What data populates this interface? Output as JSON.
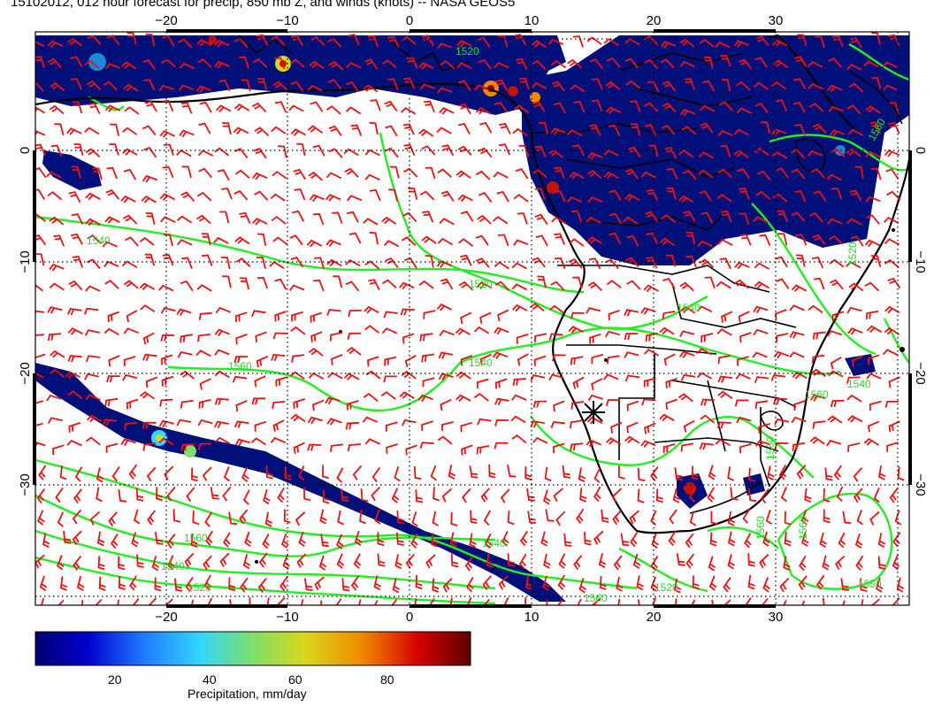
{
  "title": "15102012, 012 hour forecast for precip, 850 mb Z, and winds (knots) -- NASA GEOS5",
  "map": {
    "lon_ticks": [
      "−20",
      "−10",
      "0",
      "10",
      "20",
      "30"
    ],
    "lat_ticks": [
      "0",
      "−10",
      "−20",
      "−30"
    ],
    "lon_range": [
      -30,
      40
    ],
    "lat_range": [
      -40,
      10
    ],
    "contour_labels": [
      "1540",
      "1520",
      "1540",
      "1560",
      "1560",
      "1540",
      "1520",
      "1540",
      "1520",
      "1560",
      "1520",
      "1550",
      "1540",
      "1560",
      "1560",
      "1560",
      "1560",
      "1540",
      "1520",
      "1560"
    ],
    "colors": {
      "precip_low": "#00107a",
      "precip_mid": "#1a8ad6",
      "precip_high": "#c21200",
      "contour": "#22ee22",
      "wind": "#ee1111",
      "coast": "#000000"
    }
  },
  "colorbar": {
    "label": "Precipitation, mm/day",
    "ticks": [
      "20",
      "40",
      "60",
      "80"
    ],
    "range": [
      0,
      100
    ],
    "stops": [
      "#00006e",
      "#0000cd",
      "#1f7bff",
      "#33d6ff",
      "#7fdf6a",
      "#d8d81a",
      "#f08a00",
      "#d60000",
      "#5a0000"
    ]
  }
}
